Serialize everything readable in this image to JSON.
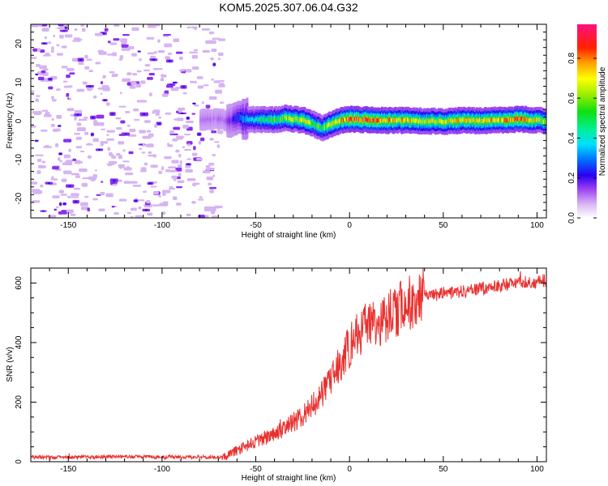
{
  "title": "KOM5.2025.307.06.04.G32",
  "chart_data": [
    {
      "type": "heatmap",
      "xlabel": "Height of straight line (km)",
      "ylabel": "Frequency (Hz)",
      "xlim": [
        -170,
        105
      ],
      "ylim": [
        -25,
        25
      ],
      "xticks": [
        -150,
        -100,
        -50,
        0,
        50,
        100
      ],
      "xtick_labels": [
        "-150",
        "-100",
        "-50",
        "0",
        "50",
        "100"
      ],
      "yticks": [
        -20,
        -10,
        0,
        10,
        20
      ],
      "ytick_labels": [
        "-20",
        "-10",
        "0",
        "10",
        "20"
      ],
      "noise_region_x": [
        -170,
        -68
      ],
      "ridge": {
        "x": [
          -80,
          -70,
          -65,
          -60,
          -55,
          -50,
          -45,
          -40,
          -35,
          -30,
          -25,
          -20,
          -15,
          -10,
          -5,
          0,
          10,
          20,
          30,
          40,
          50,
          60,
          70,
          80,
          90,
          100,
          105
        ],
        "freq": [
          0.3,
          0.5,
          0.0,
          0.8,
          0.6,
          0.3,
          0.4,
          0.3,
          0.8,
          0.5,
          0.2,
          -0.8,
          -1.8,
          -0.8,
          0.2,
          0.5,
          0.3,
          0.1,
          0.2,
          0.0,
          -0.1,
          0.2,
          0.1,
          0.3,
          0.5,
          0.2,
          0.0
        ],
        "amplitude": [
          0.12,
          0.12,
          0.15,
          0.25,
          0.35,
          0.45,
          0.5,
          0.55,
          0.6,
          0.65,
          0.7,
          0.6,
          0.55,
          0.7,
          0.8,
          0.85,
          0.85,
          0.8,
          0.75,
          0.7,
          0.7,
          0.75,
          0.7,
          0.8,
          0.85,
          0.7,
          0.6
        ]
      },
      "colorbar": {
        "label": "Normalized spectral amplitude",
        "range": [
          0,
          0.97
        ],
        "ticks": [
          0.0,
          0.2,
          0.4,
          0.6,
          0.8
        ],
        "tick_labels": [
          "0.0",
          "0.2",
          "0.4",
          "0.6",
          "0.8"
        ]
      }
    },
    {
      "type": "line",
      "xlabel": "Height of straight line (km)",
      "ylabel": "SNR (v/v)",
      "xlim": [
        -170,
        105
      ],
      "ylim": [
        0,
        650
      ],
      "xticks": [
        -150,
        -100,
        -50,
        0,
        50,
        100
      ],
      "xtick_labels": [
        "-150",
        "-100",
        "-50",
        "0",
        "50",
        "100"
      ],
      "yticks": [
        0,
        200,
        400,
        600
      ],
      "ytick_labels": [
        "0",
        "200",
        "400",
        "600"
      ],
      "color": "#e8302e",
      "series": [
        {
          "name": "SNR",
          "x": [
            -170,
            -150,
            -120,
            -100,
            -80,
            -68,
            -63,
            -58,
            -52,
            -46,
            -40,
            -34,
            -28,
            -22,
            -16,
            -10,
            -5,
            0,
            5,
            10,
            15,
            20,
            25,
            30,
            35,
            40,
            50,
            60,
            70,
            80,
            90,
            100,
            105
          ],
          "y": [
            15,
            15,
            17,
            16,
            15,
            15,
            30,
            45,
            65,
            75,
            95,
            115,
            140,
            170,
            215,
            270,
            330,
            385,
            430,
            455,
            470,
            490,
            510,
            530,
            545,
            555,
            565,
            570,
            580,
            590,
            600,
            605,
            610
          ]
        }
      ]
    }
  ]
}
